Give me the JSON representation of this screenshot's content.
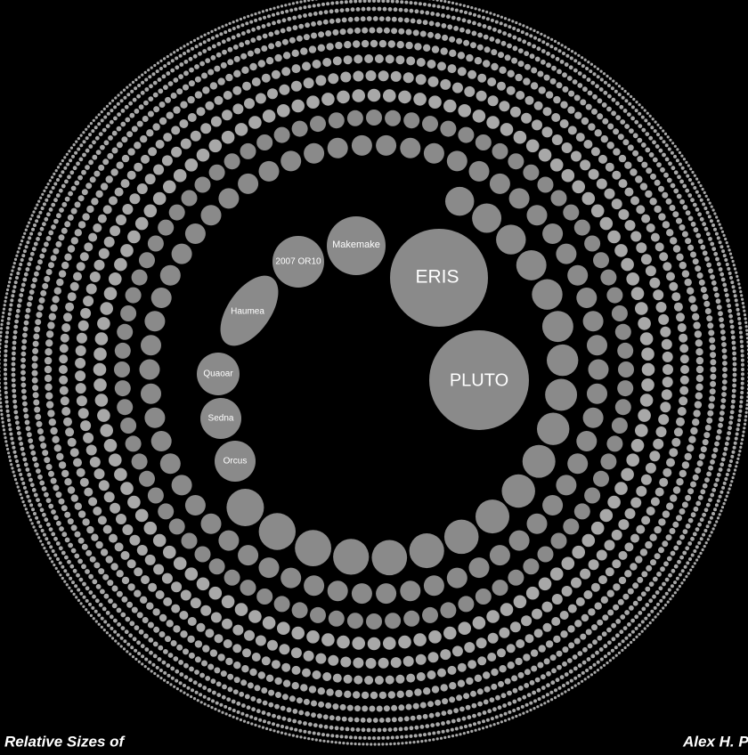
{
  "objects": [
    {
      "label": "ERIS"
    },
    {
      "label": "PLUTO"
    },
    {
      "label": "Makemake"
    },
    {
      "label": "2007 OR10"
    },
    {
      "label": "Haumea"
    },
    {
      "label": "Quaoar"
    },
    {
      "label": "Sedna"
    },
    {
      "label": "Orcus"
    }
  ],
  "footer": {
    "left": "Relative Sizes  of",
    "right": "Alex H. P"
  }
}
